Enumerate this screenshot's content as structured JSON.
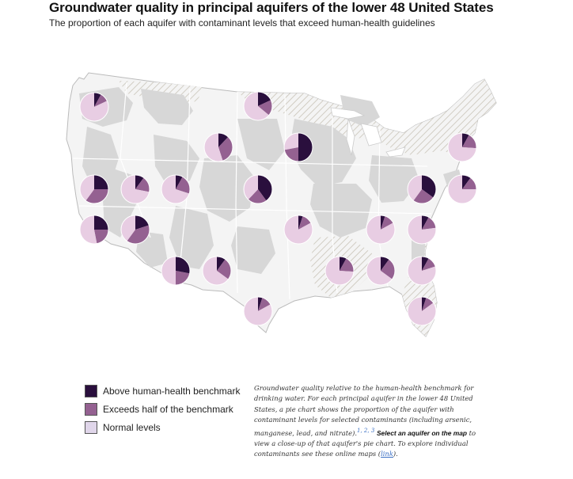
{
  "title": "Groundwater quality in principal aquifers of the lower 48 United States",
  "subtitle": "The proportion of each aquifer with contaminant levels that exceed human-health guidelines",
  "colors": {
    "above": "#2a0f3d",
    "exceeds_half": "#946191",
    "normal": "#e8cde3",
    "aquifer_fill": "#d7d7d7",
    "land": "#f4f4f4",
    "hatch": "#c9c4b8",
    "border": "#bbbbbb"
  },
  "legend": {
    "above": "Above human-health benchmark",
    "exceeds_half": "Exceeds half of the benchmark",
    "normal": "Normal levels"
  },
  "note": {
    "text_1": "Groundwater quality relative to the human-health benchmark for drinking water. For each principal aquifer in the lower 48 United States, a pie chart shows the proportion of the aquifer with contaminant levels for selected contaminants (including arsenic, manganese, lead, and nitrate).",
    "refs": "1, 2, 3",
    "cta": "Select an aquifer on the map",
    "text_2": "to view a close-up of that aquifer's pie chart. To explore individual contaminants see these online maps",
    "link_open": "(",
    "link": "link",
    "link_close": ")."
  },
  "chart_data": {
    "type": "pie",
    "series_order": [
      "above",
      "exceeds_half",
      "normal"
    ],
    "pies": [
      {
        "id": "pacific-northwest",
        "above": 0.08,
        "exceeds_half": 0.1,
        "normal": 0.82
      },
      {
        "id": "northern-plains",
        "above": 0.18,
        "exceeds_half": 0.18,
        "normal": 0.64
      },
      {
        "id": "rocky-mountains",
        "above": 0.12,
        "exceeds_half": 0.33,
        "normal": 0.55
      },
      {
        "id": "upper-midwest",
        "above": 0.5,
        "exceeds_half": 0.22,
        "normal": 0.28
      },
      {
        "id": "new-england",
        "above": 0.08,
        "exceeds_half": 0.18,
        "normal": 0.74
      },
      {
        "id": "ca-north",
        "above": 0.25,
        "exceeds_half": 0.35,
        "normal": 0.4
      },
      {
        "id": "great-basin-north",
        "above": 0.1,
        "exceeds_half": 0.18,
        "normal": 0.72
      },
      {
        "id": "idaho-utah",
        "above": 0.08,
        "exceeds_half": 0.22,
        "normal": 0.7
      },
      {
        "id": "central-plains",
        "above": 0.4,
        "exceeds_half": 0.22,
        "normal": 0.38
      },
      {
        "id": "appalachian-north",
        "above": 0.35,
        "exceeds_half": 0.25,
        "normal": 0.4
      },
      {
        "id": "mid-atlantic",
        "above": 0.1,
        "exceeds_half": 0.15,
        "normal": 0.75
      },
      {
        "id": "ca-south",
        "above": 0.25,
        "exceeds_half": 0.22,
        "normal": 0.53
      },
      {
        "id": "great-basin-south",
        "above": 0.2,
        "exceeds_half": 0.4,
        "normal": 0.4
      },
      {
        "id": "ozark",
        "above": 0.05,
        "exceeds_half": 0.12,
        "normal": 0.83
      },
      {
        "id": "cumberland",
        "above": 0.05,
        "exceeds_half": 0.12,
        "normal": 0.83
      },
      {
        "id": "piedmont",
        "above": 0.08,
        "exceeds_half": 0.15,
        "normal": 0.77
      },
      {
        "id": "arizona",
        "above": 0.28,
        "exceeds_half": 0.22,
        "normal": 0.5
      },
      {
        "id": "rio-grande",
        "above": 0.1,
        "exceeds_half": 0.25,
        "normal": 0.65
      },
      {
        "id": "mississippi-valley",
        "above": 0.08,
        "exceeds_half": 0.18,
        "normal": 0.74
      },
      {
        "id": "southeastern",
        "above": 0.1,
        "exceeds_half": 0.25,
        "normal": 0.65
      },
      {
        "id": "atlantic-coastal",
        "above": 0.08,
        "exceeds_half": 0.12,
        "normal": 0.8
      },
      {
        "id": "texas-coastal",
        "above": 0.05,
        "exceeds_half": 0.12,
        "normal": 0.83
      },
      {
        "id": "florida",
        "above": 0.05,
        "exceeds_half": 0.1,
        "normal": 0.85
      }
    ]
  }
}
